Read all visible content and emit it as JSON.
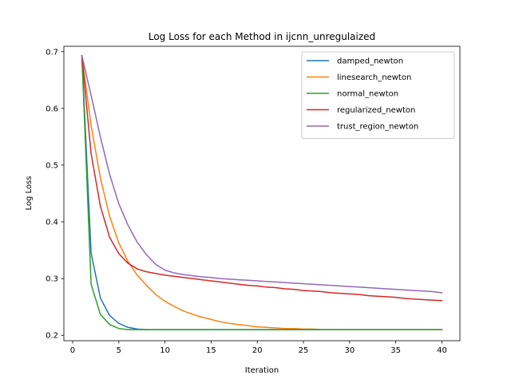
{
  "chart_data": {
    "type": "line",
    "title": "Log Loss for each Method in ijcnn_unregulaized",
    "xlabel": "Iteration",
    "ylabel": "Log Loss",
    "xlim": [
      -0.95,
      41.95
    ],
    "ylim": [
      0.1905,
      0.7095
    ],
    "xticks": [
      0,
      5,
      10,
      15,
      20,
      25,
      30,
      35,
      40
    ],
    "yticks": [
      0.2,
      0.3,
      0.4,
      0.5,
      0.6,
      0.7
    ],
    "grid": false,
    "legend_position": "top-right",
    "series": [
      {
        "name": "damped_newton",
        "color": "#1f77b4",
        "x": [
          1,
          2,
          3,
          4,
          5,
          6,
          7,
          8,
          9,
          10,
          11,
          12,
          13,
          14,
          15,
          16,
          17,
          18,
          19,
          20,
          21,
          22,
          23,
          24,
          25,
          26,
          27,
          28,
          29,
          30,
          31,
          32,
          33,
          34,
          35,
          36,
          37,
          38,
          39,
          40
        ],
        "y": [
          0.693,
          0.345,
          0.266,
          0.235,
          0.221,
          0.214,
          0.211,
          0.21,
          0.21,
          0.21,
          0.21,
          0.21,
          0.21,
          0.21,
          0.21,
          0.21,
          0.21,
          0.21,
          0.21,
          0.21,
          0.21,
          0.21,
          0.21,
          0.21,
          0.21,
          0.21,
          0.21,
          0.21,
          0.21,
          0.21,
          0.21,
          0.21,
          0.21,
          0.21,
          0.21,
          0.21,
          0.21,
          0.21,
          0.21,
          0.21
        ]
      },
      {
        "name": "linesearch_newton",
        "color": "#ff7f0e",
        "x": [
          1,
          2,
          3,
          4,
          5,
          6,
          7,
          8,
          9,
          10,
          11,
          12,
          13,
          14,
          15,
          16,
          17,
          18,
          19,
          20,
          21,
          22,
          23,
          24,
          25,
          26,
          27,
          28,
          29,
          30,
          31,
          32,
          33,
          34,
          35,
          36,
          37,
          38,
          39,
          40
        ],
        "y": [
          0.693,
          0.57,
          0.478,
          0.41,
          0.363,
          0.33,
          0.306,
          0.288,
          0.272,
          0.26,
          0.251,
          0.243,
          0.237,
          0.232,
          0.228,
          0.224,
          0.221,
          0.219,
          0.217,
          0.215,
          0.214,
          0.213,
          0.212,
          0.212,
          0.211,
          0.211,
          0.21,
          0.21,
          0.21,
          0.21,
          0.21,
          0.21,
          0.21,
          0.21,
          0.21,
          0.21,
          0.21,
          0.21,
          0.21,
          0.21
        ]
      },
      {
        "name": "normal_newton",
        "color": "#2ca02c",
        "x": [
          1,
          2,
          3,
          4,
          5,
          6,
          7,
          8,
          9,
          10,
          11,
          12,
          13,
          14,
          15,
          16,
          17,
          18,
          19,
          20,
          21,
          22,
          23,
          24,
          25,
          26,
          27,
          28,
          29,
          30,
          31,
          32,
          33,
          34,
          35,
          36,
          37,
          38,
          39,
          40
        ],
        "y": [
          0.693,
          0.29,
          0.237,
          0.219,
          0.212,
          0.21,
          0.21,
          0.21,
          0.21,
          0.21,
          0.21,
          0.21,
          0.21,
          0.21,
          0.21,
          0.21,
          0.21,
          0.21,
          0.21,
          0.21,
          0.21,
          0.21,
          0.21,
          0.21,
          0.21,
          0.21,
          0.21,
          0.21,
          0.21,
          0.21,
          0.21,
          0.21,
          0.21,
          0.21,
          0.21,
          0.21,
          0.21,
          0.21,
          0.21,
          0.21
        ]
      },
      {
        "name": "regularized_newton",
        "color": "#d62728",
        "x": [
          1,
          2,
          3,
          4,
          5,
          6,
          7,
          8,
          9,
          10,
          11,
          12,
          13,
          14,
          15,
          16,
          17,
          18,
          19,
          20,
          21,
          22,
          23,
          24,
          25,
          26,
          27,
          28,
          29,
          30,
          31,
          32,
          33,
          34,
          35,
          36,
          37,
          38,
          39,
          40
        ],
        "y": [
          0.693,
          0.52,
          0.428,
          0.373,
          0.344,
          0.327,
          0.317,
          0.312,
          0.309,
          0.306,
          0.304,
          0.302,
          0.3,
          0.298,
          0.296,
          0.294,
          0.292,
          0.29,
          0.288,
          0.287,
          0.285,
          0.284,
          0.282,
          0.281,
          0.279,
          0.278,
          0.277,
          0.275,
          0.274,
          0.273,
          0.272,
          0.27,
          0.269,
          0.268,
          0.267,
          0.265,
          0.264,
          0.263,
          0.262,
          0.261
        ]
      },
      {
        "name": "trust_region_newton",
        "color": "#9467bd",
        "x": [
          1,
          2,
          3,
          4,
          5,
          6,
          7,
          8,
          9,
          10,
          11,
          12,
          13,
          14,
          15,
          16,
          17,
          18,
          19,
          20,
          21,
          22,
          23,
          24,
          25,
          26,
          27,
          28,
          29,
          30,
          31,
          32,
          33,
          34,
          35,
          36,
          37,
          38,
          39,
          40
        ],
        "y": [
          0.693,
          0.623,
          0.55,
          0.484,
          0.432,
          0.394,
          0.364,
          0.342,
          0.325,
          0.315,
          0.31,
          0.307,
          0.305,
          0.303,
          0.302,
          0.3,
          0.299,
          0.298,
          0.297,
          0.296,
          0.295,
          0.294,
          0.293,
          0.292,
          0.291,
          0.29,
          0.289,
          0.288,
          0.287,
          0.286,
          0.285,
          0.284,
          0.283,
          0.282,
          0.281,
          0.28,
          0.279,
          0.278,
          0.277,
          0.275
        ]
      }
    ]
  }
}
